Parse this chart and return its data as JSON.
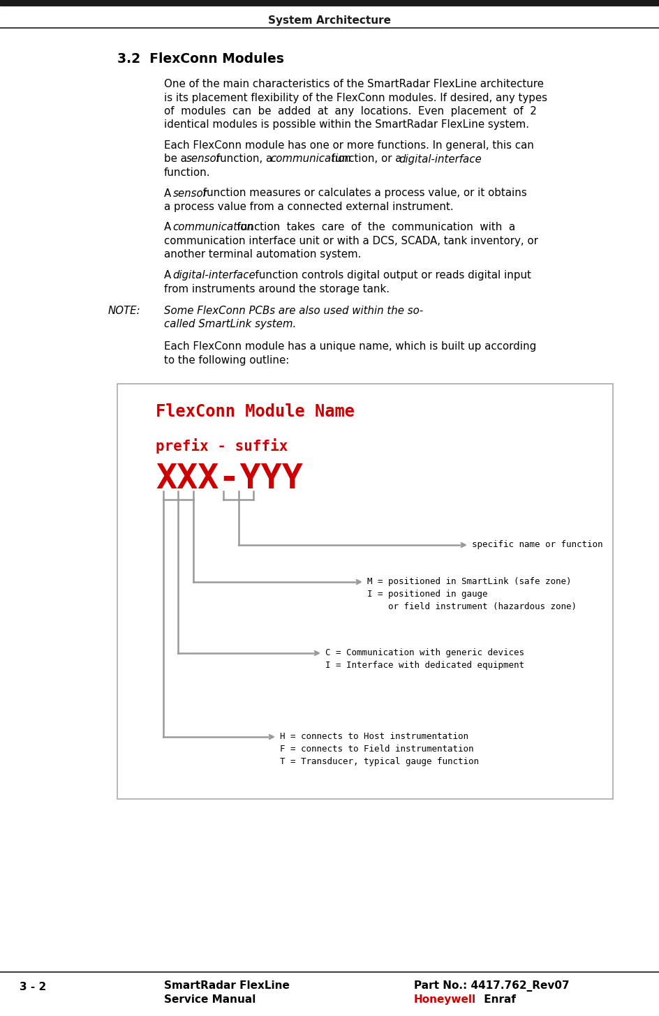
{
  "page_title": "System Architecture",
  "section_heading": "3.2  FlexConn Modules",
  "footer_left_line1": "SmartRadar FlexLine",
  "footer_left_line2": "Service Manual",
  "footer_right_line1": "Part No.: 4417.762_Rev07",
  "footer_page": "3 - 2",
  "red_color": "#CC0000",
  "gray_color": "#888888",
  "black_color": "#000000",
  "honeywell_color": "#CC0000",
  "enraf_color": "#000000",
  "bg_color": "#ffffff",
  "diagram_title": "FlexConn Module Name",
  "diagram_prefix_suffix": "prefix - suffix",
  "diagram_xxx_yyy": "XXX-YYY",
  "diagram_label1": "specific name or function",
  "diagram_label2_line1": "M = positioned in SmartLink (safe zone)",
  "diagram_label2_line2": "I = positioned in gauge",
  "diagram_label2_line3": "    or field instrument (hazardous zone)",
  "diagram_label3_line1": "C = Communication with generic devices",
  "diagram_label3_line2": "I = Interface with dedicated equipment",
  "diagram_label4_line1": "H = connects to Host instrumentation",
  "diagram_label4_line2": "F = connects to Field instrumentation",
  "diagram_label4_line3": "T = Transducer, typical gauge function"
}
